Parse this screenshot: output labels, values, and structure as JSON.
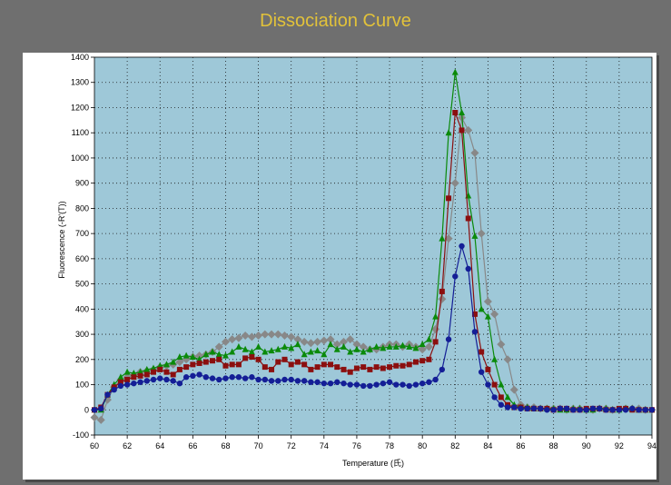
{
  "title": "Dissociation Curve",
  "chart_data": {
    "type": "line",
    "title": "Dissociation Curve",
    "xlabel": "Temperature (氏)",
    "ylabel": "Fluorescence (-R'(T))",
    "xlim": [
      60,
      94
    ],
    "ylim": [
      -100,
      1400
    ],
    "xticks": [
      60,
      62,
      64,
      66,
      68,
      70,
      72,
      74,
      76,
      78,
      80,
      82,
      84,
      86,
      88,
      90,
      92,
      94
    ],
    "yticks": [
      -100,
      0,
      100,
      200,
      300,
      400,
      500,
      600,
      700,
      800,
      900,
      1000,
      1100,
      1200,
      1300,
      1400
    ],
    "grid": true,
    "legend": "none",
    "x": [
      60,
      60.4,
      60.8,
      61.2,
      61.6,
      62,
      62.4,
      62.8,
      63.2,
      63.6,
      64,
      64.4,
      64.8,
      65.2,
      65.6,
      66,
      66.4,
      66.8,
      67.2,
      67.6,
      68,
      68.4,
      68.8,
      69.2,
      69.6,
      70,
      70.4,
      70.8,
      71.2,
      71.6,
      72,
      72.4,
      72.8,
      73.2,
      73.6,
      74,
      74.4,
      74.8,
      75.2,
      75.6,
      76,
      76.4,
      76.8,
      77.2,
      77.6,
      78,
      78.4,
      78.8,
      79.2,
      79.6,
      80,
      80.4,
      80.8,
      81.2,
      81.6,
      82,
      82.4,
      82.8,
      83.2,
      83.6,
      84,
      84.4,
      84.8,
      85.2,
      85.6,
      86,
      86.4,
      86.8,
      87.2,
      87.6,
      88,
      88.4,
      88.8,
      89.2,
      89.6,
      90,
      90.4,
      90.8,
      91.2,
      91.6,
      92,
      92.4,
      92.8,
      93.2,
      93.6,
      94
    ],
    "series": [
      {
        "marker": "diamond",
        "color": "#888888",
        "values": [
          -30,
          -40,
          40,
          90,
          120,
          130,
          140,
          150,
          155,
          160,
          170,
          175,
          180,
          190,
          200,
          210,
          215,
          220,
          230,
          250,
          270,
          280,
          285,
          295,
          290,
          295,
          300,
          300,
          300,
          295,
          290,
          280,
          270,
          265,
          270,
          275,
          280,
          260,
          270,
          280,
          260,
          250,
          240,
          240,
          250,
          260,
          260,
          250,
          260,
          250,
          240,
          250,
          320,
          440,
          680,
          900,
          1160,
          1110,
          1020,
          700,
          430,
          380,
          260,
          200,
          80,
          20,
          10,
          10,
          5,
          5,
          5,
          5,
          0,
          5,
          5,
          0,
          0,
          5,
          5,
          0,
          0,
          5,
          5,
          5,
          0,
          0
        ]
      },
      {
        "marker": "triangle",
        "color": "#0a8a0a",
        "values": [
          0,
          0,
          60,
          100,
          130,
          150,
          145,
          150,
          160,
          165,
          175,
          180,
          190,
          210,
          215,
          210,
          200,
          220,
          230,
          220,
          215,
          230,
          250,
          240,
          230,
          250,
          230,
          235,
          240,
          250,
          245,
          260,
          220,
          230,
          235,
          220,
          260,
          240,
          250,
          230,
          240,
          230,
          240,
          250,
          245,
          250,
          250,
          255,
          250,
          245,
          260,
          280,
          370,
          680,
          1100,
          1340,
          1180,
          850,
          690,
          400,
          370,
          200,
          100,
          50,
          20,
          10,
          10,
          5,
          5,
          5,
          5,
          0,
          0,
          5,
          5,
          0,
          0,
          5,
          5,
          0,
          0,
          5,
          5,
          0,
          0,
          0
        ]
      },
      {
        "marker": "square",
        "color": "#8b0f0f",
        "values": [
          0,
          10,
          60,
          90,
          110,
          120,
          130,
          135,
          140,
          150,
          160,
          150,
          140,
          160,
          170,
          180,
          185,
          190,
          195,
          200,
          175,
          180,
          180,
          205,
          210,
          200,
          170,
          160,
          190,
          200,
          180,
          190,
          180,
          160,
          170,
          180,
          180,
          170,
          160,
          150,
          165,
          170,
          160,
          170,
          165,
          170,
          175,
          175,
          180,
          190,
          195,
          200,
          270,
          470,
          840,
          1180,
          1110,
          760,
          380,
          230,
          160,
          100,
          50,
          20,
          10,
          10,
          5,
          5,
          5,
          5,
          0,
          5,
          5,
          0,
          0,
          5,
          5,
          5,
          0,
          0,
          5,
          5,
          0,
          0,
          0,
          0
        ]
      },
      {
        "marker": "circle",
        "color": "#141e96",
        "values": [
          0,
          5,
          60,
          80,
          95,
          100,
          105,
          110,
          115,
          120,
          125,
          120,
          115,
          105,
          130,
          135,
          140,
          130,
          125,
          120,
          125,
          130,
          130,
          125,
          130,
          120,
          120,
          115,
          115,
          120,
          120,
          115,
          115,
          110,
          110,
          105,
          105,
          110,
          105,
          100,
          100,
          95,
          95,
          100,
          105,
          110,
          100,
          100,
          95,
          100,
          105,
          110,
          120,
          160,
          280,
          530,
          650,
          560,
          310,
          150,
          100,
          50,
          20,
          10,
          10,
          5,
          5,
          5,
          5,
          0,
          0,
          5,
          5,
          0,
          0,
          0,
          5,
          5,
          0,
          0,
          0,
          0,
          5,
          0,
          0,
          0
        ]
      }
    ]
  }
}
